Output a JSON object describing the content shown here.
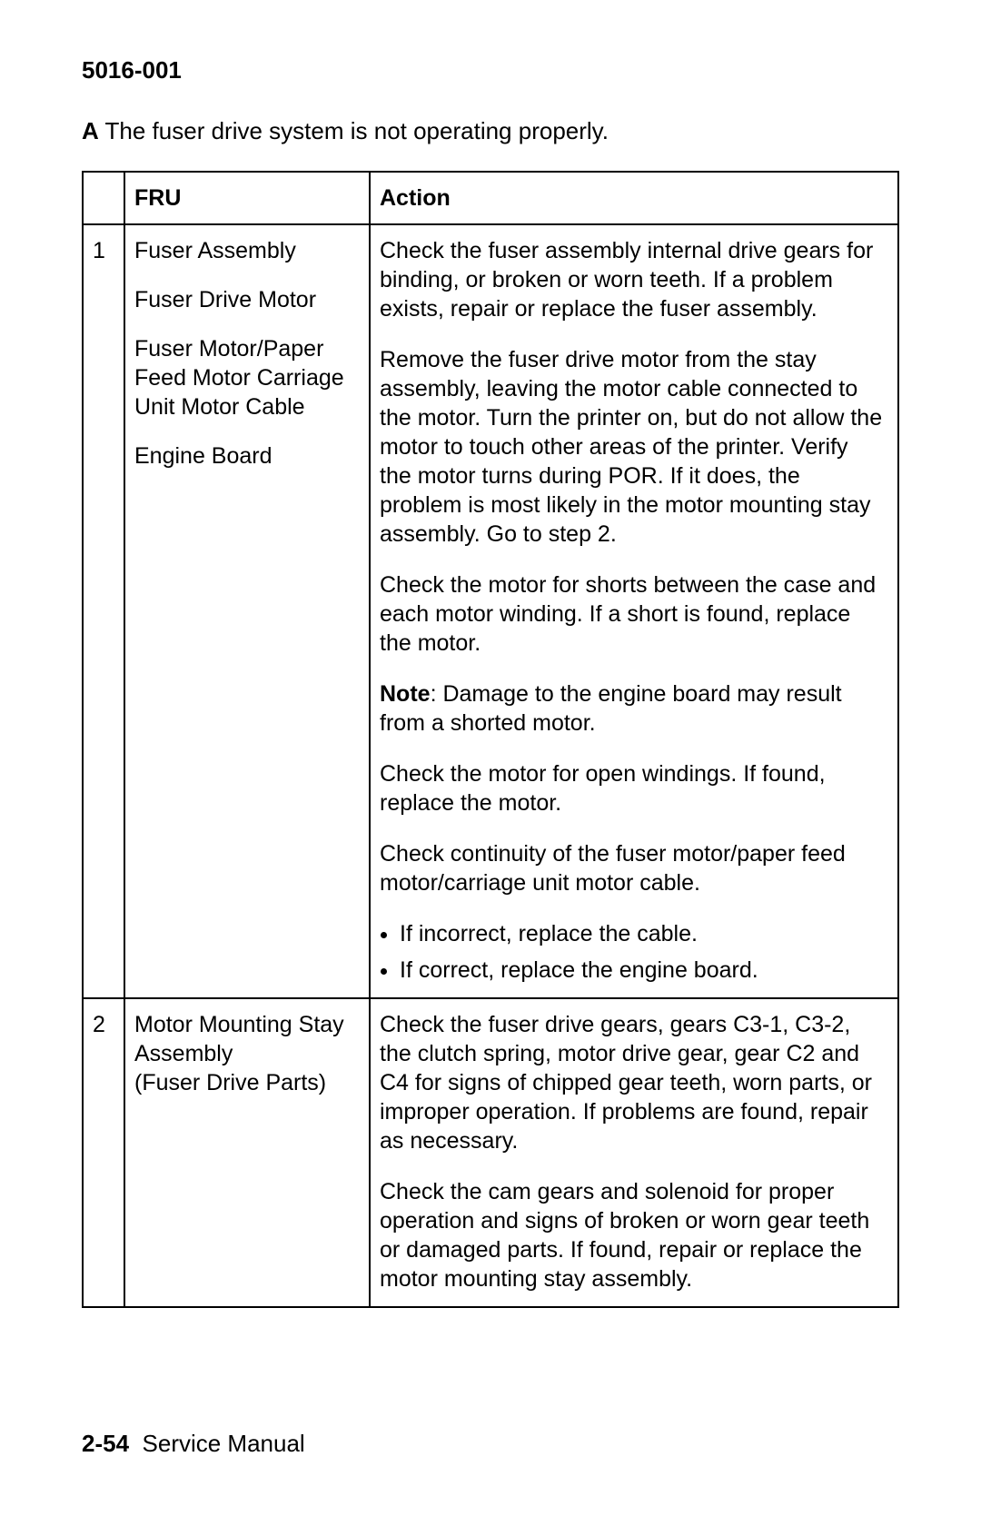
{
  "heading": "5016-001",
  "intro": {
    "lead": "A",
    "text": " The fuser drive system is not operating properly."
  },
  "table": {
    "headers": {
      "num": "",
      "fru": "FRU",
      "action": "Action"
    },
    "rows": [
      {
        "num": "1",
        "fru": [
          "Fuser Assembly",
          "Fuser Drive Motor",
          "Fuser Motor/Paper Feed Motor Carriage Unit Motor Cable",
          "Engine Board"
        ],
        "action": [
          {
            "text": "Check the fuser assembly internal drive gears for binding, or broken or worn teeth. If a problem exists, repair or replace the fuser assembly."
          },
          {
            "text": "Remove the fuser drive motor from the stay assembly, leaving the motor cable connected to the motor. Turn the printer on, but do not allow the motor to touch other areas of the printer. Verify the motor turns during POR. If it does, the problem is most likely in the motor mounting stay assembly. Go to step 2."
          },
          {
            "text": "Check the motor for shorts between the case and each motor winding. If a short is found, replace the motor."
          },
          {
            "note_lead": "Note",
            "text": ": Damage to the engine board may result from a shorted motor."
          },
          {
            "text": "Check the motor for open windings. If found, replace the motor."
          },
          {
            "text": "Check continuity of the fuser motor/paper feed motor/carriage unit motor cable."
          },
          {
            "bullets": [
              "If incorrect, replace the cable.",
              "If correct, replace the engine board."
            ]
          }
        ]
      },
      {
        "num": "2",
        "fru": [
          "Motor Mounting Stay Assembly",
          "(Fuser Drive Parts)"
        ],
        "fru_tight": true,
        "action": [
          {
            "text": "Check the fuser drive gears, gears C3-1, C3-2, the clutch spring, motor drive gear, gear C2 and C4 for signs of chipped gear teeth, worn parts, or improper operation. If problems are found, repair as necessary."
          },
          {
            "text": "Check the cam gears and solenoid for proper operation and signs of broken or worn gear teeth or damaged parts. If found, repair or replace the motor mounting stay assembly."
          }
        ]
      }
    ]
  },
  "footer": {
    "page": "2-54",
    "label": "Service Manual"
  }
}
